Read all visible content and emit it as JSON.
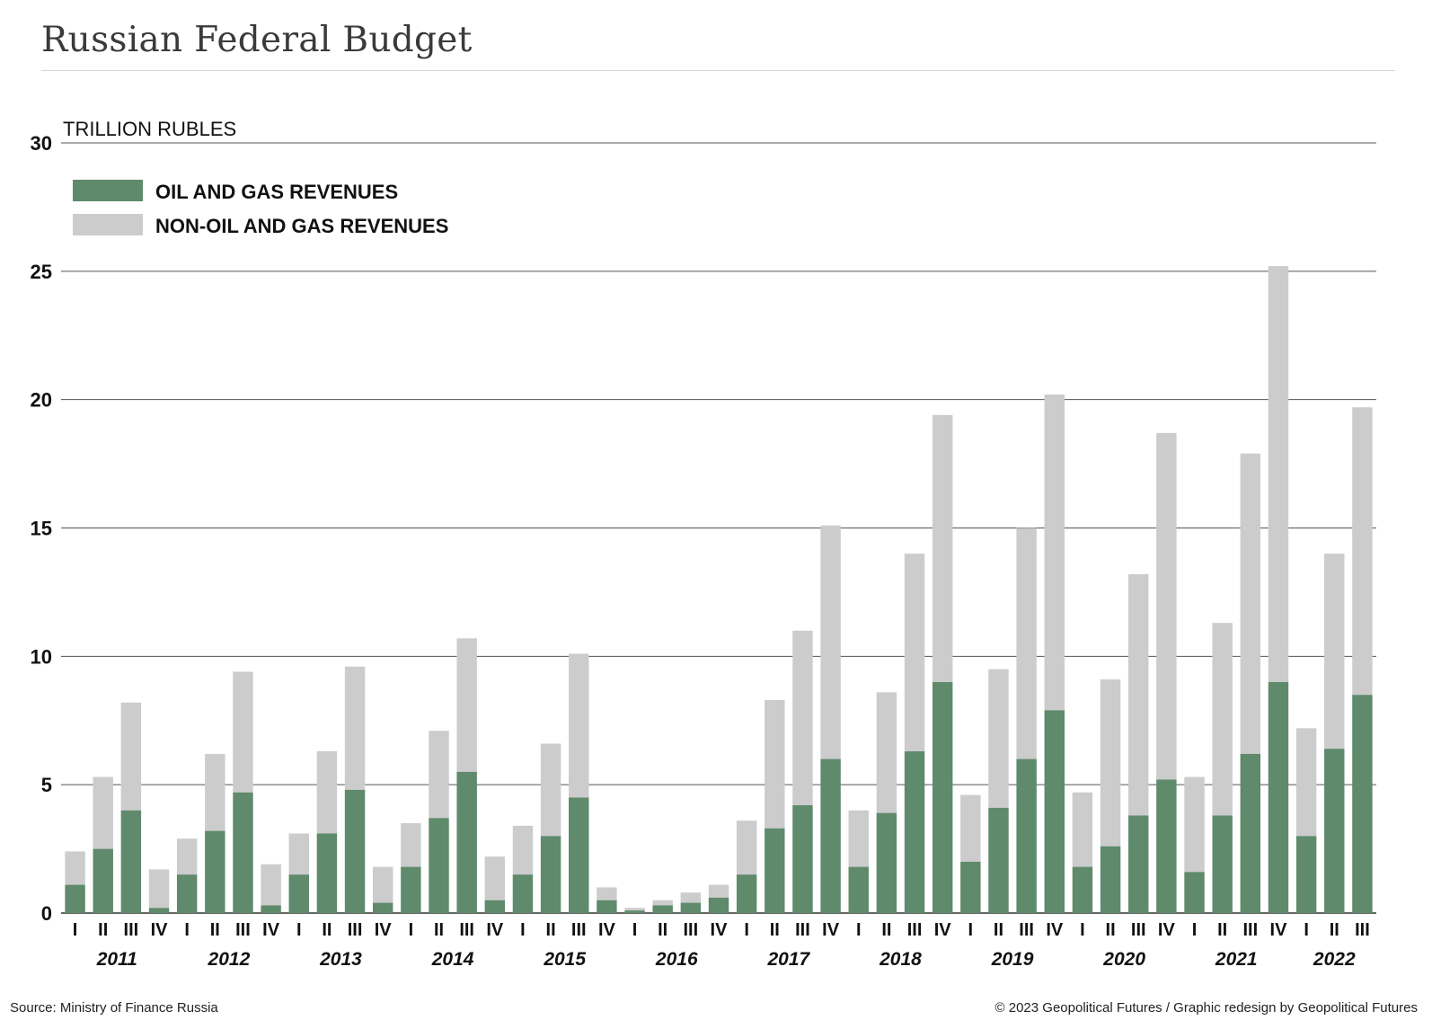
{
  "header": {
    "title": "Russian Federal Budget"
  },
  "footer": {
    "source": "Source: Ministry of Finance Russia",
    "credit": "© 2023 Geopolitical Futures / Graphic redesign by Geopolitical Futures"
  },
  "colors": {
    "oil_gas": "#5f8a6b",
    "non_oil_gas": "#cccccc",
    "grid": "#555555",
    "text": "#111111"
  },
  "chart_data": {
    "type": "bar",
    "stacked": true,
    "ylabel": "TRILLION RUBLES",
    "ylim": [
      0,
      30
    ],
    "yticks": [
      0,
      5,
      10,
      15,
      20,
      25,
      30
    ],
    "grid": true,
    "legend_position": "top-left",
    "legend": [
      "OIL AND GAS REVENUES",
      "NON-OIL AND GAS REVENUES"
    ],
    "years": [
      {
        "label": "2011",
        "quarters": 4
      },
      {
        "label": "2012",
        "quarters": 4
      },
      {
        "label": "2013",
        "quarters": 4
      },
      {
        "label": "2014",
        "quarters": 4
      },
      {
        "label": "2015",
        "quarters": 4
      },
      {
        "label": "2016",
        "quarters": 4
      },
      {
        "label": "2017",
        "quarters": 4
      },
      {
        "label": "2018",
        "quarters": 4
      },
      {
        "label": "2019",
        "quarters": 4
      },
      {
        "label": "2020",
        "quarters": 4
      },
      {
        "label": "2021",
        "quarters": 4
      },
      {
        "label": "2022",
        "quarters": 3
      }
    ],
    "categories": [
      "I",
      "II",
      "III",
      "IV",
      "I",
      "II",
      "III",
      "IV",
      "I",
      "II",
      "III",
      "IV",
      "I",
      "II",
      "III",
      "IV",
      "I",
      "II",
      "III",
      "IV",
      "I",
      "II",
      "III",
      "IV",
      "I",
      "II",
      "III",
      "IV",
      "I",
      "II",
      "III",
      "IV",
      "I",
      "II",
      "III",
      "IV",
      "I",
      "II",
      "III",
      "IV",
      "I",
      "II",
      "III",
      "IV",
      "I",
      "II",
      "III"
    ],
    "series": [
      {
        "name": "OIL AND GAS REVENUES",
        "values": [
          1.1,
          2.5,
          4.0,
          0.2,
          1.5,
          3.2,
          4.7,
          0.3,
          1.5,
          3.1,
          4.8,
          0.4,
          1.8,
          3.7,
          5.5,
          0.5,
          1.5,
          3.0,
          4.5,
          0.5,
          0.1,
          0.3,
          0.4,
          0.6,
          1.5,
          3.3,
          4.2,
          6.0,
          1.8,
          3.9,
          6.3,
          9.0,
          2.0,
          4.1,
          6.0,
          7.9,
          1.8,
          2.6,
          3.8,
          5.2,
          1.6,
          3.8,
          6.2,
          9.0,
          3.0,
          6.4,
          8.5
        ]
      },
      {
        "name": "NON-OIL AND GAS REVENUES",
        "values": [
          1.3,
          2.8,
          4.2,
          1.5,
          1.4,
          3.0,
          4.7,
          1.6,
          1.6,
          3.2,
          4.8,
          1.4,
          1.7,
          3.4,
          5.2,
          1.7,
          1.9,
          3.6,
          5.6,
          0.5,
          0.1,
          0.2,
          0.4,
          0.5,
          2.1,
          5.0,
          6.8,
          9.1,
          2.2,
          4.7,
          7.7,
          10.4,
          2.6,
          5.4,
          9.0,
          12.3,
          2.9,
          6.5,
          9.4,
          13.5,
          3.7,
          7.5,
          11.7,
          16.2,
          4.2,
          7.6,
          11.2
        ]
      }
    ]
  }
}
